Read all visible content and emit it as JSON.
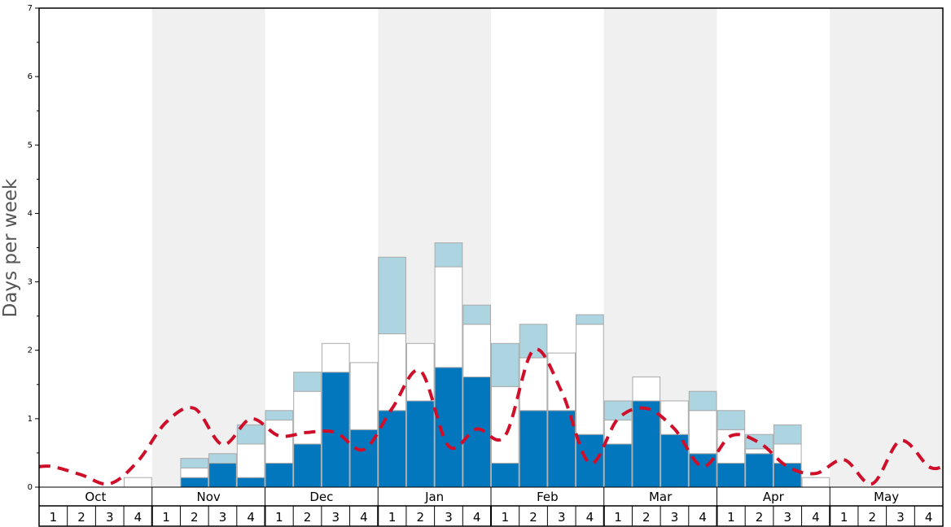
{
  "chart_data": {
    "type": "bar",
    "ylabel": "Days per week",
    "ylim": [
      0,
      7
    ],
    "yticks": [
      "0",
      "1",
      "2",
      "3",
      "4",
      "5",
      "6",
      "7"
    ],
    "months": [
      "Oct",
      "Nov",
      "Dec",
      "Jan",
      "Feb",
      "Mar",
      "Apr",
      "May"
    ],
    "weeks": [
      "1",
      "2",
      "3",
      "4"
    ],
    "grid": false,
    "series": [
      {
        "values": [
          0,
          0,
          0,
          0,
          0,
          0.14,
          0.35,
          0.14,
          0.35,
          0.63,
          1.68,
          0.84,
          1.12,
          1.26,
          1.75,
          1.61,
          0.35,
          1.12,
          1.12,
          0.77,
          0.63,
          1.26,
          0.77,
          0.49,
          0.35,
          0.49,
          0.35,
          0,
          0,
          0,
          0,
          0
        ],
        "color": "#0277bd"
      },
      {
        "values": [
          0,
          0,
          0,
          0.14,
          0,
          0.14,
          0,
          0.49,
          0.63,
          0.77,
          0.42,
          0.98,
          1.12,
          0.84,
          1.47,
          0.77,
          1.12,
          0.77,
          0.84,
          1.61,
          0.35,
          0.35,
          0.49,
          0.63,
          0.49,
          0.07,
          0.28,
          0.14,
          0,
          0,
          0,
          0
        ],
        "color": "#ffffff"
      },
      {
        "values": [
          0,
          0,
          0,
          0,
          0,
          0.14,
          0.14,
          0.28,
          0.14,
          0.28,
          0,
          0,
          1.12,
          0,
          0.35,
          0.28,
          0.63,
          0.49,
          0,
          0.14,
          0.28,
          0,
          0,
          0.28,
          0.28,
          0.21,
          0.28,
          0,
          0,
          0,
          0,
          0
        ],
        "color": "#acd4e1"
      },
      {
        "type": "line",
        "values": [
          0.3,
          0.18,
          0.05,
          0.38,
          0.95,
          1.15,
          0.62,
          1.0,
          0.75,
          0.8,
          0.8,
          0.55,
          1.15,
          1.7,
          0.6,
          0.85,
          0.75,
          2.0,
          1.4,
          0.35,
          1.0,
          1.15,
          0.85,
          0.3,
          0.75,
          0.65,
          0.3,
          0.2,
          0.4,
          0.05,
          0.68,
          0.3
        ],
        "color": "#cf0f2a"
      }
    ]
  },
  "colors": {
    "band_shade": "#f0f0f0",
    "bar_stroke": "#aaaaaa",
    "frame": "#000000"
  }
}
